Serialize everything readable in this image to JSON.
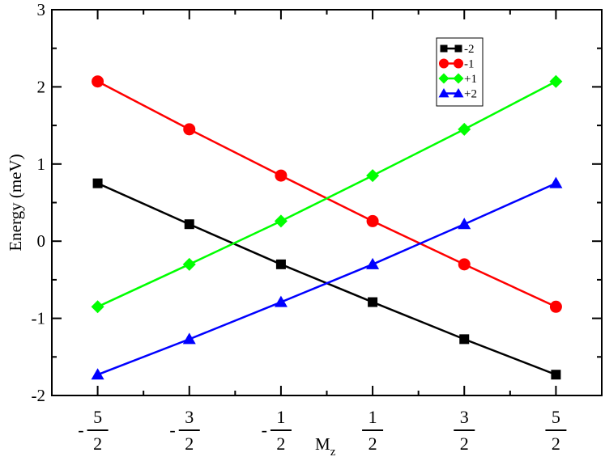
{
  "chart_data": {
    "type": "line",
    "xlabel": "M",
    "xlabel_subscript": "z",
    "ylabel": "Energy (meV)",
    "x": [
      -2.5,
      -1.5,
      -0.5,
      0.5,
      1.5,
      2.5
    ],
    "xticks": [
      {
        "sign": "-",
        "num": "5",
        "den": "2"
      },
      {
        "sign": "-",
        "num": "3",
        "den": "2"
      },
      {
        "sign": "-",
        "num": "1",
        "den": "2"
      },
      {
        "sign": "",
        "num": "1",
        "den": "2"
      },
      {
        "sign": "",
        "num": "3",
        "den": "2"
      },
      {
        "sign": "",
        "num": "5",
        "den": "2"
      }
    ],
    "xlim": [
      -3.0,
      3.0
    ],
    "ylim": [
      -2,
      3
    ],
    "yticks": [
      "-2",
      "-1",
      "0",
      "1",
      "2",
      "3"
    ],
    "legend_position": "top-right",
    "series": [
      {
        "name": "-2",
        "color": "#000000",
        "marker": "square",
        "values": [
          0.75,
          0.22,
          -0.3,
          -0.79,
          -1.27,
          -1.73
        ]
      },
      {
        "name": "-1",
        "color": "#ff0000",
        "marker": "circle",
        "values": [
          2.07,
          1.45,
          0.85,
          0.26,
          -0.3,
          -0.85
        ]
      },
      {
        "name": "+1",
        "color": "#00ff00",
        "marker": "diamond",
        "values": [
          -0.85,
          -0.3,
          0.26,
          0.85,
          1.45,
          2.07
        ]
      },
      {
        "name": "+2",
        "color": "#0000ff",
        "marker": "triangle",
        "values": [
          -1.73,
          -1.27,
          -0.79,
          -0.3,
          0.22,
          0.75
        ]
      }
    ]
  }
}
